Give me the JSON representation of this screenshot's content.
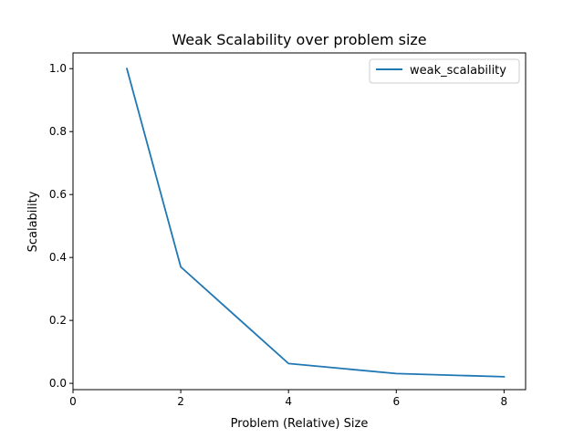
{
  "chart_data": {
    "type": "line",
    "title": "Weak Scalability over problem size",
    "xlabel": "Problem (Relative) Size",
    "ylabel": "Scalability",
    "xlim": [
      0,
      8.4
    ],
    "ylim": [
      -0.02,
      1.05
    ],
    "xticks": [
      0,
      2,
      4,
      6,
      8
    ],
    "xtick_labels": [
      "0",
      "2",
      "4",
      "6",
      "8"
    ],
    "yticks": [
      0.0,
      0.2,
      0.4,
      0.6,
      0.8,
      1.0
    ],
    "ytick_labels": [
      "0.0",
      "0.2",
      "0.4",
      "0.6",
      "0.8",
      "1.0"
    ],
    "grid": false,
    "legend": {
      "placement": "top-right"
    },
    "series": [
      {
        "name": "weak_scalability",
        "color": "#1f77b4",
        "x": [
          1,
          2,
          4,
          6,
          8
        ],
        "y": [
          1.0,
          0.37,
          0.063,
          0.031,
          0.021
        ]
      }
    ]
  }
}
